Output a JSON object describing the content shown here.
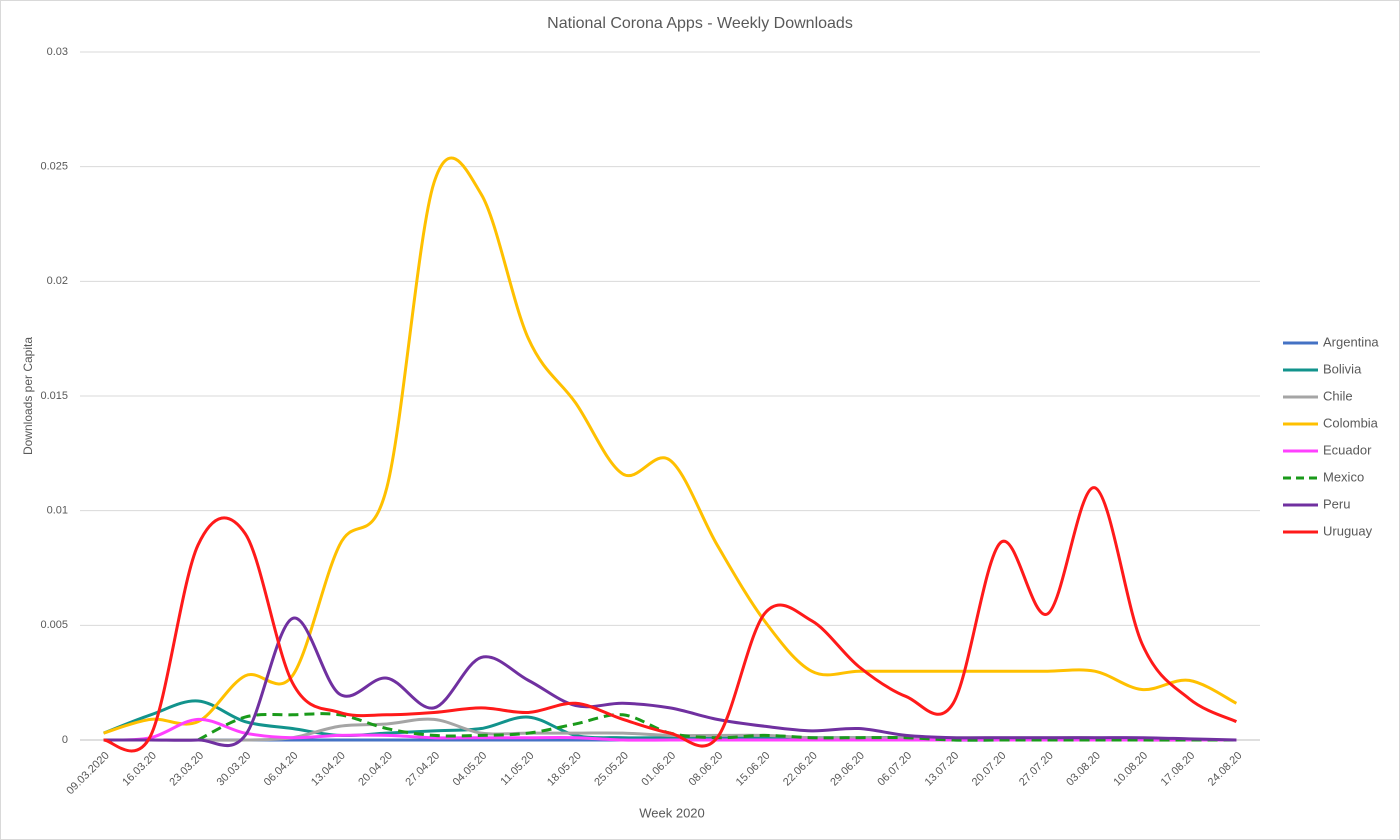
{
  "chart_data": {
    "type": "line",
    "title": "National Corona Apps - Weekly Downloads",
    "x_label": "Week 2020",
    "y_label": "Downloads per Capita",
    "categories": [
      "09.03.2020",
      "16.03.20",
      "23.03.20",
      "30.03.20",
      "06.04.20",
      "13.04.20",
      "20.04.20",
      "27.04.20",
      "04.05.20",
      "11.05.20",
      "18.05.20",
      "25.05.20",
      "01.06.20",
      "08.06.20",
      "15.06.20",
      "22.06.20",
      "29.06.20",
      "06.07.20",
      "13.07.20",
      "20.07.20",
      "27.07.20",
      "03.08.20",
      "10.08.20",
      "17.08.20",
      "24.08.20"
    ],
    "ylim": [
      0,
      0.03
    ],
    "yticks": [
      0,
      0.005,
      0.01,
      0.015,
      0.02,
      0.025,
      0.03
    ],
    "grid": true,
    "legend": "right",
    "smooth": true,
    "series": [
      {
        "name": "Argentina",
        "color": "#4472c4",
        "style": "solid",
        "values": [
          0,
          0,
          0,
          0,
          0,
          0,
          0,
          0,
          0,
          0,
          0,
          0,
          0,
          0,
          0,
          0,
          0,
          0,
          0,
          0,
          0,
          0,
          0,
          0,
          0
        ]
      },
      {
        "name": "Bolivia",
        "color": "#12938c",
        "style": "solid",
        "values": [
          0.0003,
          0.0011,
          0.0017,
          0.0008,
          0.0005,
          0.0002,
          0.0003,
          0.0004,
          0.0005,
          0.001,
          0.0002,
          0.0001,
          0.0001,
          0.0001,
          0.0001,
          0.0001,
          0.0001,
          0.0001,
          0,
          0,
          0,
          0,
          0,
          0,
          0
        ]
      },
      {
        "name": "Chile",
        "color": "#a5a5a5",
        "style": "solid",
        "values": [
          0,
          0,
          0,
          0,
          0.0001,
          0.0006,
          0.0007,
          0.0009,
          0.0003,
          0.0003,
          0.0003,
          0.0003,
          0.0002,
          0.0002,
          0.0002,
          0.0001,
          0.0001,
          0.0001,
          0.0001,
          0.0001,
          0.0001,
          0.0001,
          0,
          0,
          0
        ]
      },
      {
        "name": "Colombia",
        "color": "#ffc000",
        "style": "solid",
        "values": [
          0.0003,
          0.0009,
          0.0008,
          0.0028,
          0.0028,
          0.0085,
          0.011,
          0.0243,
          0.0238,
          0.0175,
          0.0147,
          0.0116,
          0.0122,
          0.0085,
          0.0052,
          0.003,
          0.003,
          0.003,
          0.003,
          0.003,
          0.003,
          0.003,
          0.0022,
          0.0026,
          0.0016
        ]
      },
      {
        "name": "Ecuador",
        "color": "#ff40ff",
        "style": "solid",
        "values": [
          0,
          0.0001,
          0.0009,
          0.0003,
          0.0001,
          0.0002,
          0.0002,
          0.0001,
          0.0001,
          0.0001,
          0.0001,
          0,
          0,
          0,
          0,
          0,
          0,
          0,
          0,
          0,
          0,
          0,
          0,
          0,
          0
        ]
      },
      {
        "name": "Mexico",
        "color": "#1a9a1a",
        "style": "dashed",
        "values": [
          null,
          null,
          0,
          0.001,
          0.0011,
          0.0011,
          0.0005,
          0.0002,
          0.0002,
          0.0003,
          0.0007,
          0.0011,
          0.0003,
          0.0001,
          0.0002,
          0.0001,
          0.0001,
          0.0001,
          0,
          0,
          0,
          0,
          0,
          0,
          0
        ]
      },
      {
        "name": "Peru",
        "color": "#7030a0",
        "style": "solid",
        "values": [
          0,
          0,
          0,
          0.0002,
          0.0053,
          0.002,
          0.0027,
          0.0014,
          0.0036,
          0.0026,
          0.0015,
          0.0016,
          0.0014,
          0.0009,
          0.0006,
          0.0004,
          0.0005,
          0.0002,
          0.0001,
          0.0001,
          0.0001,
          0.0001,
          0.0001,
          5e-05,
          0
        ]
      },
      {
        "name": "Uruguay",
        "color": "#ff1a1a",
        "style": "solid",
        "values": [
          0,
          0.0002,
          0.0085,
          0.009,
          0.0025,
          0.0012,
          0.0011,
          0.0012,
          0.0014,
          0.0012,
          0.0016,
          0.0009,
          0.0003,
          0.0001,
          0.0055,
          0.0052,
          0.0032,
          0.0019,
          0.0016,
          0.0086,
          0.0055,
          0.011,
          0.0042,
          0.0018,
          0.0008
        ]
      }
    ]
  }
}
